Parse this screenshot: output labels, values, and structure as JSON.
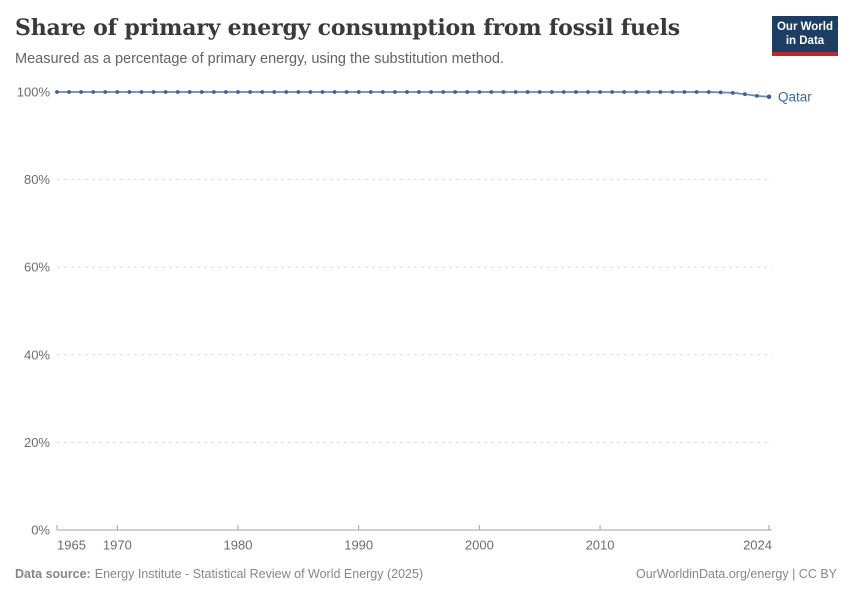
{
  "header": {
    "title": "Share of primary energy consumption from fossil fuels",
    "subtitle": "Measured as a percentage of primary energy, using the substitution method.",
    "logo": {
      "line1": "Our World",
      "line2": "in Data"
    }
  },
  "chart_data": {
    "type": "line",
    "title": "Share of primary energy consumption from fossil fuels",
    "xlabel": "",
    "ylabel": "",
    "xlim": [
      1965,
      2024
    ],
    "ylim": [
      0,
      100
    ],
    "grid": "horizontal dashed",
    "legend_position": "end-of-line label",
    "x_ticks": [
      1965,
      1970,
      1980,
      1990,
      2000,
      2010,
      2024
    ],
    "y_ticks": [
      0,
      20,
      40,
      60,
      80,
      100
    ],
    "y_tick_suffix": "%",
    "series": [
      {
        "name": "Qatar",
        "x": [
          1965,
          1966,
          1967,
          1968,
          1969,
          1970,
          1971,
          1972,
          1973,
          1974,
          1975,
          1976,
          1977,
          1978,
          1979,
          1980,
          1981,
          1982,
          1983,
          1984,
          1985,
          1986,
          1987,
          1988,
          1989,
          1990,
          1991,
          1992,
          1993,
          1994,
          1995,
          1996,
          1997,
          1998,
          1999,
          2000,
          2001,
          2002,
          2003,
          2004,
          2005,
          2006,
          2007,
          2008,
          2009,
          2010,
          2011,
          2012,
          2013,
          2014,
          2015,
          2016,
          2017,
          2018,
          2019,
          2020,
          2021,
          2022,
          2023,
          2024
        ],
        "values": [
          100,
          100,
          100,
          100,
          100,
          100,
          100,
          100,
          100,
          100,
          100,
          100,
          100,
          100,
          100,
          100,
          100,
          100,
          100,
          100,
          100,
          100,
          100,
          100,
          100,
          100,
          100,
          100,
          100,
          100,
          100,
          100,
          100,
          100,
          100,
          100,
          100,
          100,
          100,
          100,
          100,
          100,
          100,
          100,
          100,
          100,
          100,
          100,
          100,
          100,
          100,
          100,
          100,
          100,
          100,
          99.9,
          99.8,
          99.5,
          99.1,
          98.9
        ]
      }
    ],
    "colors": {
      "line": "#6d86b4",
      "marker": "#3f5f9e",
      "series_label": "#3d66a8",
      "grid": "#dcdcdc",
      "axis": "#a3a3a3",
      "tick_label": "#6d6d6d"
    }
  },
  "footer": {
    "source_label": "Data source:",
    "source_text": "Energy Institute - Statistical Review of World Energy (2025)",
    "right_text": "OurWorldinData.org/energy | CC BY"
  }
}
